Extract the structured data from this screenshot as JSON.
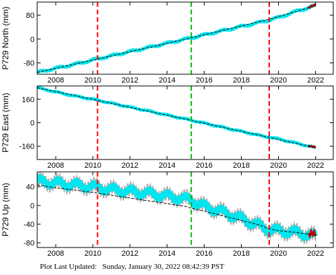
{
  "footer": {
    "label": "Plot Last Updated:",
    "timestamp": "Sunday, January 30, 2022 08:42:39 PST"
  },
  "colors": {
    "data": "#00e5ee",
    "errorbar": "#a8a8a8",
    "model": "#000000",
    "event_red": "#ff0000",
    "event_green": "#00bb00",
    "recent": "#cc0000"
  },
  "chart_data": [
    {
      "type": "line",
      "ylabel": "P729 North (mm)",
      "xlim": [
        2007.0,
        2022.95
      ],
      "ylim": [
        -118,
        124
      ],
      "x_ticks": [
        2008,
        2010,
        2012,
        2014,
        2016,
        2018,
        2020,
        2022
      ],
      "y_ticks": [
        -80,
        0,
        80
      ],
      "vertical_lines": [
        {
          "x": 2010.25,
          "color": "red",
          "style": "dashed"
        },
        {
          "x": 2015.3,
          "color": "green",
          "style": "dashed"
        },
        {
          "x": 2019.5,
          "color": "red",
          "style": "dashed"
        }
      ],
      "series": [
        {
          "role": "observations",
          "x": [
            2007.0,
            2008.0,
            2009.0,
            2010.0,
            2011.0,
            2012.0,
            2013.0,
            2014.0,
            2015.0,
            2016.0,
            2017.0,
            2018.0,
            2019.0,
            2020.0,
            2021.0,
            2022.0
          ],
          "values": [
            -112,
            -98,
            -85,
            -70,
            -56,
            -42,
            -28,
            -14,
            0,
            14,
            28,
            42,
            56,
            72,
            94,
            112
          ],
          "error": 5
        },
        {
          "role": "model",
          "x": [
            2007.0,
            2010.25,
            2015.3,
            2019.5,
            2022.0
          ],
          "values": [
            -112,
            -67,
            4,
            66,
            112
          ]
        }
      ]
    },
    {
      "type": "line",
      "ylabel": "P729 East (mm)",
      "xlim": [
        2007.0,
        2022.95
      ],
      "ylim": [
        -250,
        250
      ],
      "x_ticks": [
        2008,
        2010,
        2012,
        2014,
        2016,
        2018,
        2020,
        2022
      ],
      "y_ticks": [
        -160,
        0,
        160
      ],
      "vertical_lines": [
        {
          "x": 2010.25,
          "color": "red",
          "style": "dashed"
        },
        {
          "x": 2015.3,
          "color": "green",
          "style": "dashed"
        },
        {
          "x": 2019.5,
          "color": "red",
          "style": "dashed"
        }
      ],
      "series": [
        {
          "role": "observations",
          "x": [
            2007.0,
            2008.0,
            2009.0,
            2010.0,
            2011.0,
            2012.0,
            2013.0,
            2014.0,
            2015.0,
            2016.0,
            2017.0,
            2018.0,
            2019.0,
            2020.0,
            2021.0,
            2022.0
          ],
          "values": [
            238,
            209,
            182,
            160,
            133,
            106,
            80,
            52,
            25,
            -3,
            -31,
            -59,
            -87,
            -110,
            -140,
            -170
          ],
          "error": 6
        },
        {
          "role": "model",
          "x": [
            2007.0,
            2010.25,
            2015.3,
            2019.5,
            2022.0
          ],
          "values": [
            238,
            152,
            16,
            -100,
            -170
          ]
        }
      ]
    },
    {
      "type": "line",
      "ylabel": "P729 Up (mm)",
      "xlim": [
        2007.0,
        2022.95
      ],
      "ylim": [
        -90,
        72
      ],
      "x_ticks": [
        2008,
        2010,
        2012,
        2014,
        2016,
        2018,
        2020,
        2022
      ],
      "y_ticks": [
        -80,
        -40,
        0,
        40
      ],
      "vertical_lines": [
        {
          "x": 2010.25,
          "color": "red",
          "style": "dashed"
        },
        {
          "x": 2015.3,
          "color": "green",
          "style": "dashed"
        },
        {
          "x": 2019.5,
          "color": "red",
          "style": "dashed"
        }
      ],
      "series": [
        {
          "role": "observations",
          "x": [
            2007.0,
            2008.0,
            2009.0,
            2010.0,
            2011.0,
            2012.0,
            2013.0,
            2014.0,
            2015.0,
            2015.3,
            2016.0,
            2017.0,
            2018.0,
            2019.0,
            2019.5,
            2020.0,
            2021.0,
            2022.0
          ],
          "values": [
            52,
            48,
            44,
            40,
            34,
            30,
            26,
            20,
            14,
            12,
            -2,
            -14,
            -28,
            -44,
            -52,
            -54,
            -58,
            -66
          ],
          "error": 12
        },
        {
          "role": "model",
          "x": [
            2007.0,
            2008.0,
            2009.0,
            2010.0,
            2011.0,
            2012.0,
            2013.0,
            2014.0,
            2015.0,
            2015.3,
            2016.0,
            2017.0,
            2018.0,
            2019.0,
            2019.5,
            2020.0,
            2021.0,
            2022.0
          ],
          "values": [
            44,
            38,
            33,
            28,
            22,
            16,
            10,
            4,
            -2,
            -6,
            -12,
            -22,
            -32,
            -42,
            -50,
            -54,
            -58,
            -64
          ]
        }
      ]
    }
  ]
}
